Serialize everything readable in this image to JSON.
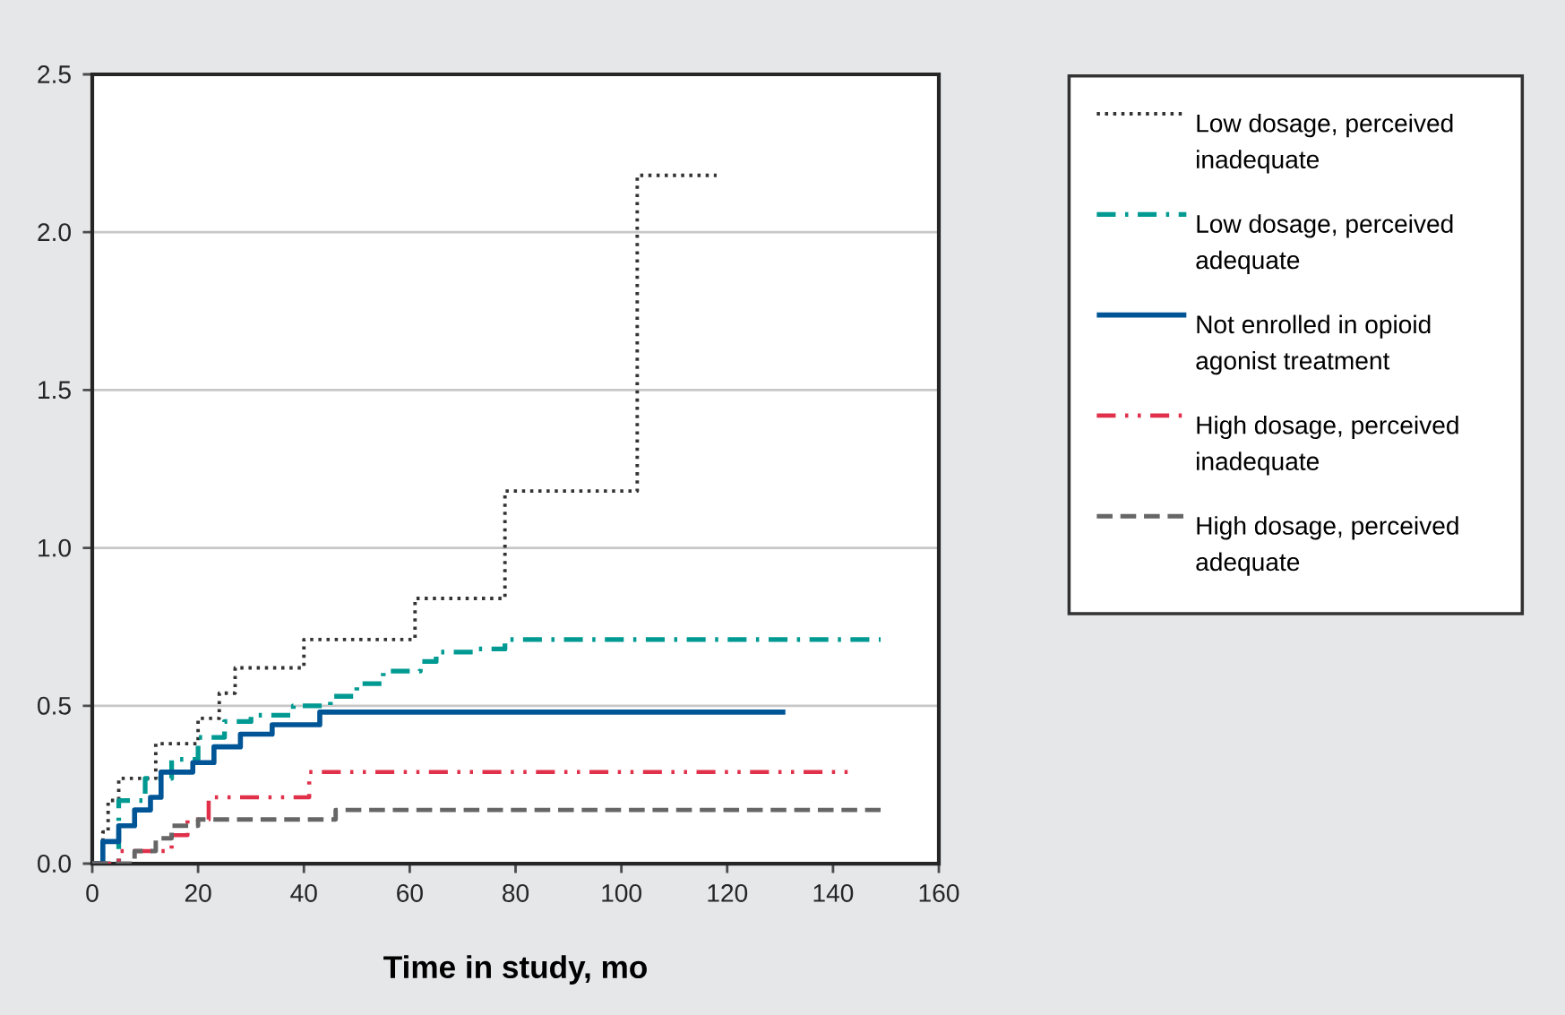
{
  "chart_data": {
    "type": "step",
    "xlabel": "**Time in study, mo**",
    "xlim": [
      0,
      160
    ],
    "xticks": [
      0,
      20,
      40,
      60,
      80,
      100,
      120,
      140,
      160
    ],
    "ylim": [
      0,
      2.5
    ],
    "yticks": [
      {
        "value": 0,
        "label": "0.0"
      },
      {
        "value": 0.5,
        "label": "0.5"
      },
      {
        "value": 1,
        "label": "1.0"
      },
      {
        "value": 1.5,
        "label": "1.5"
      },
      {
        "value": 2,
        "label": "2.0"
      },
      {
        "value": 2.5,
        "label": "2.5"
      }
    ],
    "grid": "y",
    "legend": "right",
    "series": [
      {
        "name": "Low dosage, perceived inadequate",
        "color": "#333333",
        "line_style": "dotted",
        "x": [
          0,
          2,
          3,
          5,
          12,
          20,
          24,
          27,
          40,
          61,
          78,
          103,
          118
        ],
        "values": [
          0,
          0.1,
          0.2,
          0.27,
          0.38,
          0.46,
          0.54,
          0.62,
          0.71,
          0.84,
          1.18,
          2.18,
          2.18
        ]
      },
      {
        "name": "Low dosage, perceived adequate",
        "color": "#009a92",
        "line_style": "dashdot",
        "x": [
          0,
          5,
          10,
          15,
          20,
          25,
          30,
          38,
          45,
          50,
          55,
          62,
          65,
          72,
          78,
          149
        ],
        "values": [
          0,
          0.2,
          0.27,
          0.33,
          0.4,
          0.45,
          0.47,
          0.5,
          0.53,
          0.57,
          0.61,
          0.64,
          0.67,
          0.68,
          0.71,
          0.71
        ]
      },
      {
        "name": "Not enrolled in opioid agonist treatment",
        "color": "#005596",
        "line_style": "solid",
        "x": [
          0,
          2,
          5,
          8,
          11,
          13,
          19,
          23,
          28,
          34,
          43,
          131
        ],
        "values": [
          0,
          0.07,
          0.12,
          0.17,
          0.21,
          0.29,
          0.32,
          0.37,
          0.41,
          0.44,
          0.48,
          0.48
        ]
      },
      {
        "name": "High dosage, perceived inadequate",
        "color": "#e0304a",
        "line_style": "dashdotdot",
        "x": [
          0,
          5,
          15,
          18,
          22,
          41,
          143
        ],
        "values": [
          0,
          0.04,
          0.09,
          0.14,
          0.21,
          0.29,
          0.29
        ]
      },
      {
        "name": "High dosage, perceived adequate",
        "color": "#666666",
        "line_style": "dashed",
        "x": [
          0,
          8,
          12,
          15,
          20,
          46,
          149
        ],
        "values": [
          0,
          0.04,
          0.08,
          0.12,
          0.14,
          0.17,
          0.17
        ]
      }
    ]
  }
}
